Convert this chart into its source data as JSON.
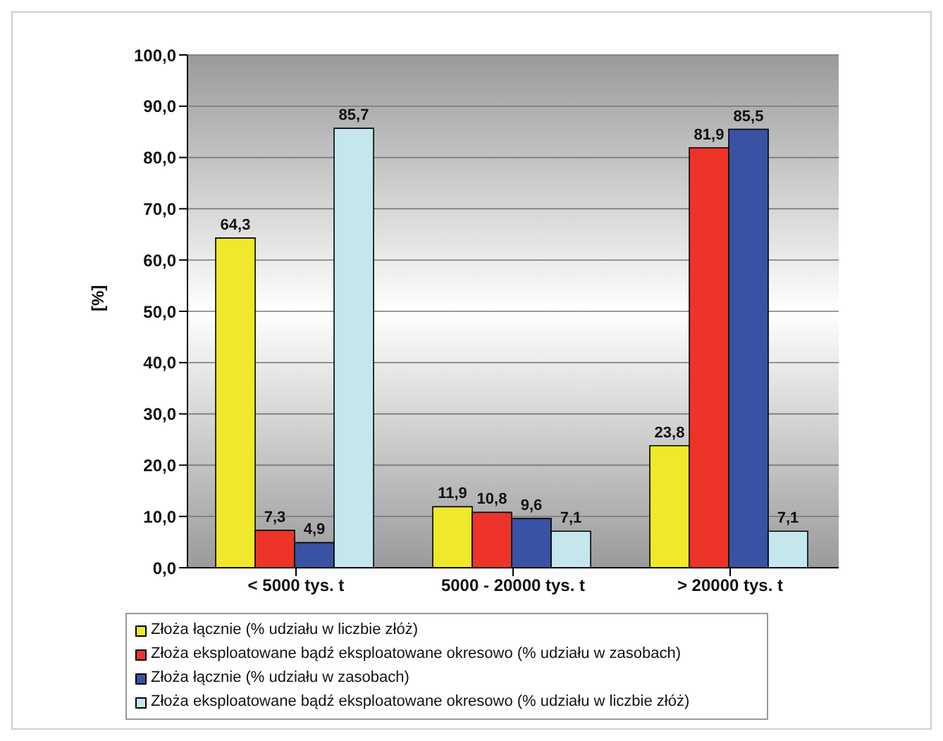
{
  "chart_data": {
    "type": "bar",
    "ylabel": "[%]",
    "categories": [
      "< 5000 tys. t",
      "5000 - 20000 tys. t",
      "> 20000 tys. t"
    ],
    "series": [
      {
        "name": "Złoża łącznie (% udziału w liczbie złóż)",
        "color": "#f0e82a",
        "values": [
          64.3,
          11.9,
          23.8
        ],
        "value_labels": [
          "64,3",
          "11,9",
          "23,8"
        ]
      },
      {
        "name": "Złoża eksploatowane bądź eksploatowane okresowo (% udziału w zasobach)",
        "color": "#ee3329",
        "values": [
          7.3,
          10.8,
          81.9
        ],
        "value_labels": [
          "7,3",
          "10,8",
          "81,9"
        ]
      },
      {
        "name": "Złoża łącznie (% udziału w zasobach)",
        "color": "#3a52a4",
        "values": [
          4.9,
          9.6,
          85.5
        ],
        "value_labels": [
          "4,9",
          "9,6",
          "85,5"
        ]
      },
      {
        "name": "Złoża eksploatowane bądź eksploatowane okresowo (% udziału w liczbie złóż)",
        "color": "#c4e7ee",
        "values": [
          85.7,
          7.1,
          7.1
        ],
        "value_labels": [
          "85,7",
          "7,1",
          "7,1"
        ]
      }
    ],
    "ylim": [
      0,
      100
    ],
    "yticks": [
      {
        "value": 0,
        "label": "0,0"
      },
      {
        "value": 10,
        "label": "10,0"
      },
      {
        "value": 20,
        "label": "20,0"
      },
      {
        "value": 30,
        "label": "30,0"
      },
      {
        "value": 40,
        "label": "40,0"
      },
      {
        "value": 50,
        "label": "50,0"
      },
      {
        "value": 60,
        "label": "60,0"
      },
      {
        "value": 70,
        "label": "70,0"
      },
      {
        "value": 80,
        "label": "80,0"
      },
      {
        "value": 90,
        "label": "90,0"
      },
      {
        "value": 100,
        "label": "100,0"
      }
    ],
    "grid": "y",
    "legend": "bottom"
  }
}
